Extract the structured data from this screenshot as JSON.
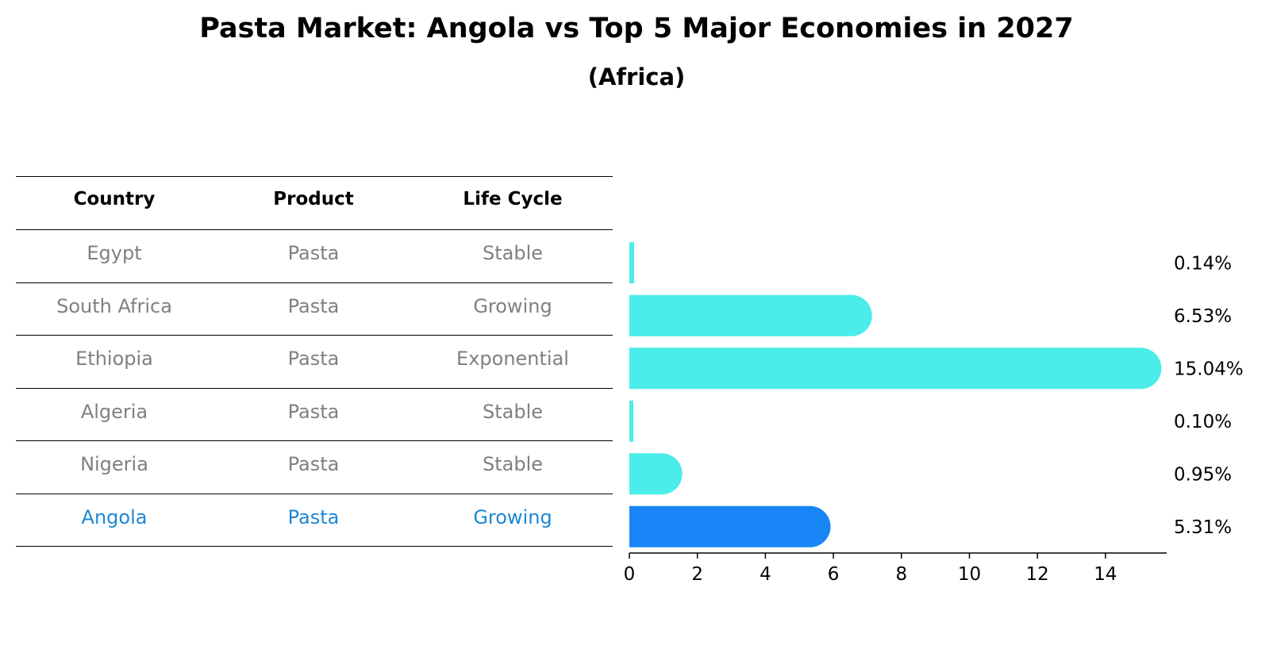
{
  "chart_data": {
    "type": "bar",
    "orientation": "horizontal",
    "title": "Pasta Market: Angola vs Top 5 Major Economies in 2027",
    "subtitle": "(Africa)",
    "table": {
      "columns": [
        "Country",
        "Product",
        "Life Cycle"
      ],
      "rows": [
        [
          "Egypt",
          "Pasta",
          "Stable"
        ],
        [
          "South Africa",
          "Pasta",
          "Growing"
        ],
        [
          "Ethiopia",
          "Pasta",
          "Exponential"
        ],
        [
          "Algeria",
          "Pasta",
          "Stable"
        ],
        [
          "Nigeria",
          "Pasta",
          "Stable"
        ],
        [
          "Angola",
          "Pasta",
          "Growing"
        ]
      ]
    },
    "categories": [
      "Egypt",
      "South Africa",
      "Ethiopia",
      "Algeria",
      "Nigeria",
      "Angola"
    ],
    "values": [
      0.14,
      6.53,
      15.04,
      0.1,
      0.95,
      5.31
    ],
    "value_labels": [
      "0.14%",
      "6.53%",
      "15.04%",
      "0.10%",
      "0.95%",
      "5.31%"
    ],
    "highlight": "Angola",
    "xlim": [
      0,
      15.8
    ],
    "xticks": [
      0,
      2,
      4,
      6,
      8,
      10,
      12,
      14
    ],
    "xlabel": "",
    "ylabel": "",
    "colors": {
      "bar": "#4aede9",
      "highlight_bar": "#1785f5",
      "text_muted": "#808080",
      "text_highlight": "#1e87d5"
    }
  }
}
